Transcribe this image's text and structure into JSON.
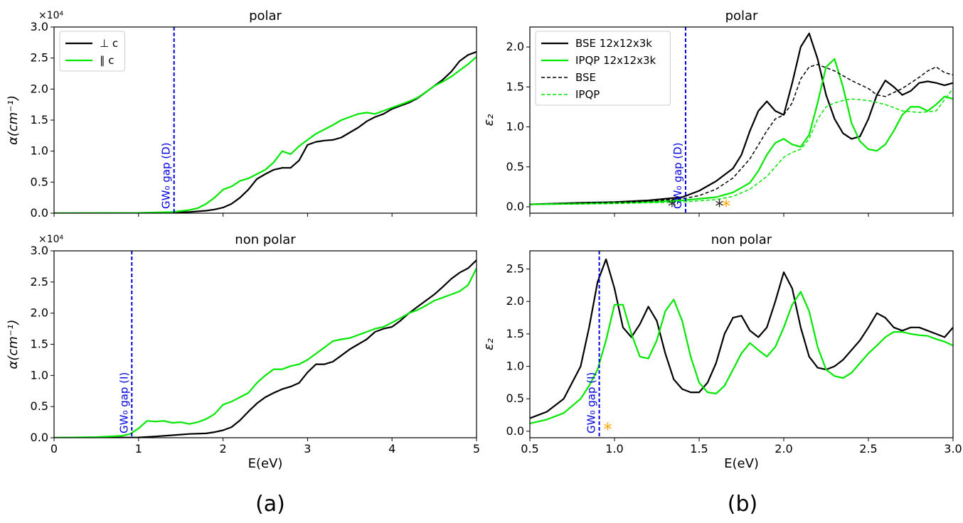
{
  "panel_labels": [
    "(a)",
    "(b)"
  ],
  "colors": {
    "perp": "#000000",
    "para": "#00e800",
    "gap": "#0000dd",
    "marker_black": "#222222",
    "marker_orange": "#ffa500"
  },
  "chart_data": [
    {
      "id": "a_polar",
      "type": "line",
      "title": "polar",
      "xlabel": "",
      "ylabel": "α(cm⁻¹)",
      "y_scale_label": "×10⁴",
      "xlim": [
        0,
        5
      ],
      "ylim": [
        0,
        3.0
      ],
      "xticks": [
        "0",
        "1",
        "2",
        "3",
        "4",
        "5"
      ],
      "x_tick_labels_visible": false,
      "yticks": [
        "0.0",
        "0.5",
        "1.0",
        "1.5",
        "2.0",
        "2.5",
        "3.0"
      ],
      "legend": {
        "loc": "upper-left",
        "entries": [
          "⊥ c",
          "∥ c"
        ]
      },
      "vline": {
        "x": 1.42,
        "label": "GW₀ gap (D)"
      },
      "series": [
        {
          "name": "⊥ c",
          "style": "solid",
          "color": "perp",
          "x": [
            0,
            1.0,
            1.4,
            1.6,
            1.8,
            1.9,
            2.0,
            2.1,
            2.2,
            2.3,
            2.4,
            2.5,
            2.6,
            2.7,
            2.8,
            2.9,
            3.0,
            3.1,
            3.2,
            3.3,
            3.4,
            3.5,
            3.6,
            3.7,
            3.8,
            3.9,
            4.0,
            4.1,
            4.2,
            4.3,
            4.4,
            4.5,
            4.6,
            4.7,
            4.8,
            4.9,
            5.0
          ],
          "y": [
            0,
            0,
            0.01,
            0.02,
            0.04,
            0.06,
            0.09,
            0.15,
            0.25,
            0.38,
            0.55,
            0.63,
            0.7,
            0.73,
            0.73,
            0.85,
            1.1,
            1.15,
            1.17,
            1.18,
            1.22,
            1.3,
            1.38,
            1.48,
            1.55,
            1.6,
            1.68,
            1.73,
            1.78,
            1.85,
            1.95,
            2.05,
            2.15,
            2.28,
            2.45,
            2.55,
            2.6
          ]
        },
        {
          "name": "∥ c",
          "style": "solid",
          "color": "para",
          "x": [
            0,
            1.0,
            1.4,
            1.6,
            1.7,
            1.8,
            1.9,
            2.0,
            2.1,
            2.2,
            2.3,
            2.4,
            2.5,
            2.6,
            2.7,
            2.8,
            2.9,
            3.0,
            3.1,
            3.2,
            3.3,
            3.4,
            3.5,
            3.6,
            3.7,
            3.8,
            3.9,
            4.0,
            4.1,
            4.2,
            4.3,
            4.4,
            4.5,
            4.6,
            4.7,
            4.8,
            4.9,
            5.0
          ],
          "y": [
            0,
            0.005,
            0.02,
            0.05,
            0.08,
            0.15,
            0.25,
            0.38,
            0.43,
            0.52,
            0.56,
            0.63,
            0.7,
            0.82,
            1.0,
            0.95,
            1.08,
            1.18,
            1.28,
            1.35,
            1.42,
            1.5,
            1.55,
            1.6,
            1.62,
            1.6,
            1.65,
            1.7,
            1.75,
            1.8,
            1.86,
            1.95,
            2.05,
            2.12,
            2.2,
            2.3,
            2.4,
            2.52
          ]
        }
      ]
    },
    {
      "id": "a_nonpolar",
      "type": "line",
      "title": "non polar",
      "xlabel": "E(eV)",
      "ylabel": "α(cm⁻¹)",
      "y_scale_label": "×10⁴",
      "xlim": [
        0,
        5
      ],
      "ylim": [
        0,
        3.0
      ],
      "xticks": [
        "0",
        "1",
        "2",
        "3",
        "4",
        "5"
      ],
      "x_tick_labels_visible": true,
      "yticks": [
        "0.0",
        "0.5",
        "1.0",
        "1.5",
        "2.0",
        "2.5",
        "3.0"
      ],
      "vline": {
        "x": 0.92,
        "label": "GW₀ gap (I)"
      },
      "series": [
        {
          "name": "⊥ c",
          "style": "solid",
          "color": "perp",
          "x": [
            0,
            1.0,
            1.2,
            1.4,
            1.6,
            1.8,
            1.9,
            2.0,
            2.1,
            2.2,
            2.3,
            2.4,
            2.5,
            2.6,
            2.7,
            2.8,
            2.9,
            3.0,
            3.1,
            3.2,
            3.3,
            3.4,
            3.5,
            3.6,
            3.7,
            3.8,
            3.9,
            4.0,
            4.1,
            4.2,
            4.3,
            4.4,
            4.5,
            4.6,
            4.7,
            4.8,
            4.9,
            5.0
          ],
          "y": [
            0,
            0.005,
            0.02,
            0.04,
            0.06,
            0.07,
            0.09,
            0.12,
            0.17,
            0.28,
            0.42,
            0.55,
            0.65,
            0.72,
            0.78,
            0.82,
            0.88,
            1.05,
            1.18,
            1.18,
            1.22,
            1.32,
            1.42,
            1.5,
            1.58,
            1.7,
            1.75,
            1.78,
            1.88,
            2.0,
            2.1,
            2.2,
            2.3,
            2.42,
            2.55,
            2.65,
            2.72,
            2.85
          ]
        },
        {
          "name": "∥ c",
          "style": "solid",
          "color": "para",
          "x": [
            0,
            0.5,
            0.8,
            0.9,
            1.0,
            1.1,
            1.2,
            1.3,
            1.4,
            1.5,
            1.6,
            1.7,
            1.8,
            1.9,
            2.0,
            2.1,
            2.2,
            2.3,
            2.4,
            2.5,
            2.6,
            2.7,
            2.8,
            2.9,
            3.0,
            3.1,
            3.2,
            3.3,
            3.4,
            3.5,
            3.6,
            3.7,
            3.8,
            3.9,
            4.0,
            4.1,
            4.2,
            4.3,
            4.4,
            4.5,
            4.6,
            4.7,
            4.8,
            4.9,
            5.0
          ],
          "y": [
            0,
            0.01,
            0.03,
            0.06,
            0.15,
            0.27,
            0.26,
            0.27,
            0.24,
            0.25,
            0.22,
            0.25,
            0.3,
            0.38,
            0.53,
            0.58,
            0.65,
            0.72,
            0.88,
            1.0,
            1.1,
            1.1,
            1.15,
            1.18,
            1.25,
            1.35,
            1.45,
            1.55,
            1.58,
            1.6,
            1.65,
            1.7,
            1.75,
            1.78,
            1.85,
            1.92,
            2.0,
            2.05,
            2.12,
            2.2,
            2.25,
            2.3,
            2.35,
            2.45,
            2.72
          ]
        }
      ]
    },
    {
      "id": "b_polar",
      "type": "line",
      "title": "polar",
      "xlabel": "",
      "ylabel": "ε₂",
      "xlim": [
        0.5,
        3.0
      ],
      "ylim": [
        -0.08,
        2.25
      ],
      "xticks": [
        "0.5",
        "1.0",
        "1.5",
        "2.0",
        "2.5",
        "3.0"
      ],
      "x_tick_labels_visible": false,
      "yticks": [
        "0.0",
        "0.5",
        "1.0",
        "1.5",
        "2.0"
      ],
      "legend": {
        "loc": "upper-left",
        "entries": [
          "BSE 12x12x3k",
          "IPQP 12x12x3k",
          "BSE",
          "IPQP"
        ]
      },
      "vline": {
        "x": 1.42,
        "label": "GW₀ gap (D)"
      },
      "markers": [
        {
          "x": 1.34,
          "y": 0.05,
          "symbol": "*",
          "color": "marker_black"
        },
        {
          "x": 1.62,
          "y": 0.05,
          "symbol": "*",
          "color": "marker_black"
        },
        {
          "x": 1.66,
          "y": 0.05,
          "symbol": "*",
          "color": "marker_orange"
        }
      ],
      "series": [
        {
          "name": "BSE 12x12x3k",
          "style": "solid",
          "color": "perp",
          "x": [
            0.5,
            0.8,
            1.0,
            1.2,
            1.4,
            1.5,
            1.6,
            1.7,
            1.75,
            1.8,
            1.85,
            1.9,
            1.95,
            2.0,
            2.05,
            2.1,
            2.15,
            2.2,
            2.25,
            2.3,
            2.35,
            2.4,
            2.45,
            2.5,
            2.55,
            2.6,
            2.65,
            2.7,
            2.75,
            2.8,
            2.85,
            2.9,
            2.95,
            3.0
          ],
          "y": [
            0.03,
            0.05,
            0.06,
            0.08,
            0.12,
            0.2,
            0.32,
            0.48,
            0.65,
            0.95,
            1.2,
            1.32,
            1.2,
            1.15,
            1.55,
            2.0,
            2.17,
            1.85,
            1.4,
            1.1,
            0.92,
            0.85,
            0.88,
            1.1,
            1.4,
            1.58,
            1.5,
            1.4,
            1.45,
            1.55,
            1.57,
            1.55,
            1.52,
            1.55
          ]
        },
        {
          "name": "IPQP 12x12x3k",
          "style": "solid",
          "color": "para",
          "x": [
            0.5,
            0.8,
            1.0,
            1.2,
            1.4,
            1.6,
            1.7,
            1.8,
            1.85,
            1.9,
            1.95,
            2.0,
            2.05,
            2.1,
            2.15,
            2.2,
            2.25,
            2.3,
            2.35,
            2.4,
            2.45,
            2.5,
            2.55,
            2.6,
            2.65,
            2.7,
            2.75,
            2.8,
            2.85,
            2.9,
            2.95,
            3.0
          ],
          "y": [
            0.03,
            0.04,
            0.05,
            0.06,
            0.08,
            0.12,
            0.18,
            0.3,
            0.45,
            0.65,
            0.8,
            0.85,
            0.78,
            0.75,
            0.9,
            1.3,
            1.75,
            1.85,
            1.5,
            1.05,
            0.82,
            0.72,
            0.7,
            0.78,
            0.95,
            1.15,
            1.25,
            1.25,
            1.2,
            1.28,
            1.38,
            1.35
          ]
        },
        {
          "name": "BSE",
          "style": "dashed",
          "color": "perp",
          "x": [
            0.5,
            0.8,
            1.0,
            1.2,
            1.4,
            1.5,
            1.6,
            1.7,
            1.8,
            1.9,
            1.95,
            2.0,
            2.05,
            2.1,
            2.15,
            2.2,
            2.3,
            2.4,
            2.5,
            2.55,
            2.6,
            2.7,
            2.8,
            2.85,
            2.9,
            2.95,
            3.0
          ],
          "y": [
            0.03,
            0.04,
            0.05,
            0.07,
            0.1,
            0.14,
            0.22,
            0.36,
            0.6,
            0.95,
            1.1,
            1.15,
            1.3,
            1.6,
            1.75,
            1.78,
            1.7,
            1.58,
            1.48,
            1.4,
            1.38,
            1.48,
            1.62,
            1.7,
            1.75,
            1.68,
            1.65
          ]
        },
        {
          "name": "IPQP",
          "style": "dashed",
          "color": "para",
          "x": [
            0.5,
            0.8,
            1.0,
            1.2,
            1.4,
            1.6,
            1.7,
            1.8,
            1.9,
            1.95,
            2.0,
            2.05,
            2.1,
            2.15,
            2.2,
            2.25,
            2.3,
            2.35,
            2.4,
            2.5,
            2.6,
            2.7,
            2.8,
            2.9,
            3.0
          ],
          "y": [
            0.03,
            0.035,
            0.04,
            0.05,
            0.06,
            0.09,
            0.13,
            0.22,
            0.38,
            0.5,
            0.62,
            0.68,
            0.72,
            0.85,
            1.1,
            1.25,
            1.3,
            1.33,
            1.35,
            1.33,
            1.28,
            1.2,
            1.18,
            1.2,
            1.48
          ]
        }
      ]
    },
    {
      "id": "b_nonpolar",
      "type": "line",
      "title": "non polar",
      "xlabel": "E(eV)",
      "ylabel": "ε₂",
      "xlim": [
        0.5,
        3.0
      ],
      "ylim": [
        -0.1,
        2.78
      ],
      "xticks": [
        "0.5",
        "1.0",
        "1.5",
        "2.0",
        "2.5",
        "3.0"
      ],
      "x_tick_labels_visible": true,
      "yticks": [
        "0.0",
        "0.5",
        "1.0",
        "1.5",
        "2.0",
        "2.5"
      ],
      "vline": {
        "x": 0.91,
        "label": "GW₀ gap (I)"
      },
      "markers": [
        {
          "x": 0.96,
          "y": 0.08,
          "symbol": "*",
          "color": "marker_orange"
        }
      ],
      "series": [
        {
          "name": "BSE",
          "style": "solid",
          "color": "perp",
          "x": [
            0.5,
            0.6,
            0.7,
            0.8,
            0.85,
            0.9,
            0.95,
            1.0,
            1.05,
            1.1,
            1.15,
            1.2,
            1.25,
            1.3,
            1.35,
            1.4,
            1.45,
            1.5,
            1.55,
            1.6,
            1.65,
            1.7,
            1.75,
            1.8,
            1.85,
            1.9,
            1.95,
            2.0,
            2.05,
            2.1,
            2.15,
            2.2,
            2.25,
            2.3,
            2.35,
            2.4,
            2.45,
            2.5,
            2.55,
            2.6,
            2.65,
            2.7,
            2.75,
            2.8,
            2.85,
            2.9,
            2.95,
            3.0
          ],
          "y": [
            0.2,
            0.3,
            0.5,
            1.0,
            1.6,
            2.3,
            2.65,
            2.2,
            1.6,
            1.45,
            1.65,
            1.92,
            1.7,
            1.2,
            0.8,
            0.65,
            0.6,
            0.6,
            0.75,
            1.05,
            1.5,
            1.75,
            1.78,
            1.55,
            1.45,
            1.6,
            2.0,
            2.45,
            2.2,
            1.6,
            1.15,
            0.98,
            0.95,
            1.0,
            1.1,
            1.25,
            1.4,
            1.6,
            1.82,
            1.75,
            1.6,
            1.55,
            1.6,
            1.6,
            1.55,
            1.5,
            1.45,
            1.6
          ]
        },
        {
          "name": "IPQP",
          "style": "solid",
          "color": "para",
          "x": [
            0.5,
            0.6,
            0.7,
            0.8,
            0.85,
            0.9,
            0.95,
            1.0,
            1.05,
            1.1,
            1.15,
            1.2,
            1.25,
            1.3,
            1.35,
            1.4,
            1.45,
            1.5,
            1.55,
            1.6,
            1.65,
            1.7,
            1.75,
            1.8,
            1.85,
            1.9,
            1.95,
            2.0,
            2.05,
            2.1,
            2.15,
            2.2,
            2.25,
            2.3,
            2.35,
            2.4,
            2.45,
            2.5,
            2.55,
            2.6,
            2.65,
            2.7,
            2.75,
            2.8,
            2.85,
            2.9,
            2.95,
            3.0
          ],
          "y": [
            0.12,
            0.18,
            0.28,
            0.5,
            0.7,
            0.95,
            1.4,
            1.95,
            1.95,
            1.5,
            1.15,
            1.12,
            1.4,
            1.85,
            2.03,
            1.7,
            1.15,
            0.75,
            0.6,
            0.58,
            0.7,
            0.95,
            1.2,
            1.36,
            1.25,
            1.15,
            1.3,
            1.6,
            1.95,
            2.15,
            1.85,
            1.3,
            0.95,
            0.85,
            0.82,
            0.9,
            1.05,
            1.2,
            1.32,
            1.45,
            1.53,
            1.53,
            1.5,
            1.48,
            1.47,
            1.42,
            1.38,
            1.32
          ]
        }
      ]
    }
  ]
}
